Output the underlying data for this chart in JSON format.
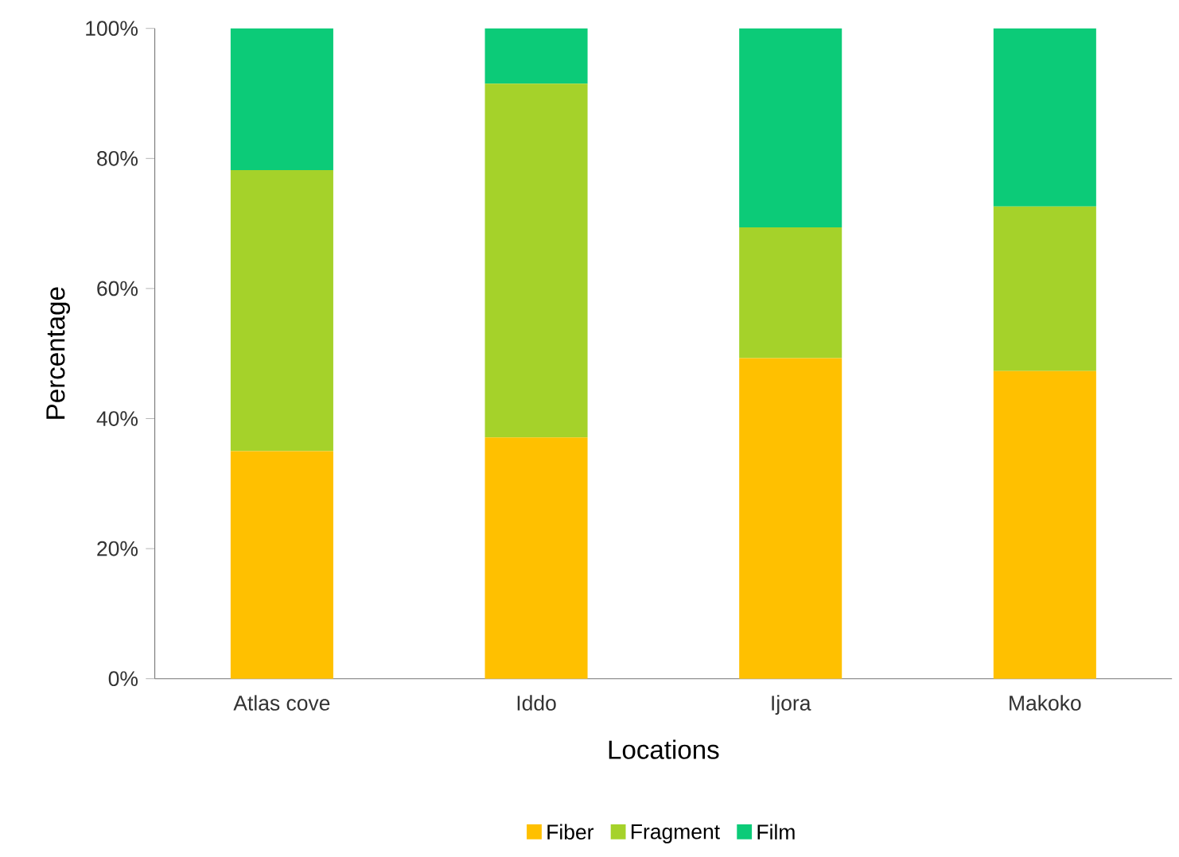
{
  "chart_data": {
    "type": "bar",
    "stacked": true,
    "xlabel": "Locations",
    "ylabel": "Percentage",
    "categories": [
      "Atlas cove",
      "Iddo",
      "Ijora",
      "Makoko"
    ],
    "series": [
      {
        "name": "Fiber",
        "color": "#ffc000",
        "values": [
          35.0,
          37.1,
          49.3,
          47.3
        ]
      },
      {
        "name": "Fragment",
        "color": "#a5d22a",
        "values": [
          43.2,
          54.4,
          20.1,
          25.3
        ]
      },
      {
        "name": "Film",
        "color": "#0ccb78",
        "values": [
          21.8,
          8.5,
          30.6,
          27.4
        ]
      }
    ],
    "ylim": [
      0,
      100
    ],
    "yticks": [
      {
        "value": 0,
        "label": "0%"
      },
      {
        "value": 20,
        "label": "20%"
      },
      {
        "value": 40,
        "label": "40%"
      },
      {
        "value": 60,
        "label": "60%"
      },
      {
        "value": 80,
        "label": "80%"
      },
      {
        "value": 100,
        "label": "100%"
      }
    ],
    "grid": false,
    "legend": "bottom"
  }
}
